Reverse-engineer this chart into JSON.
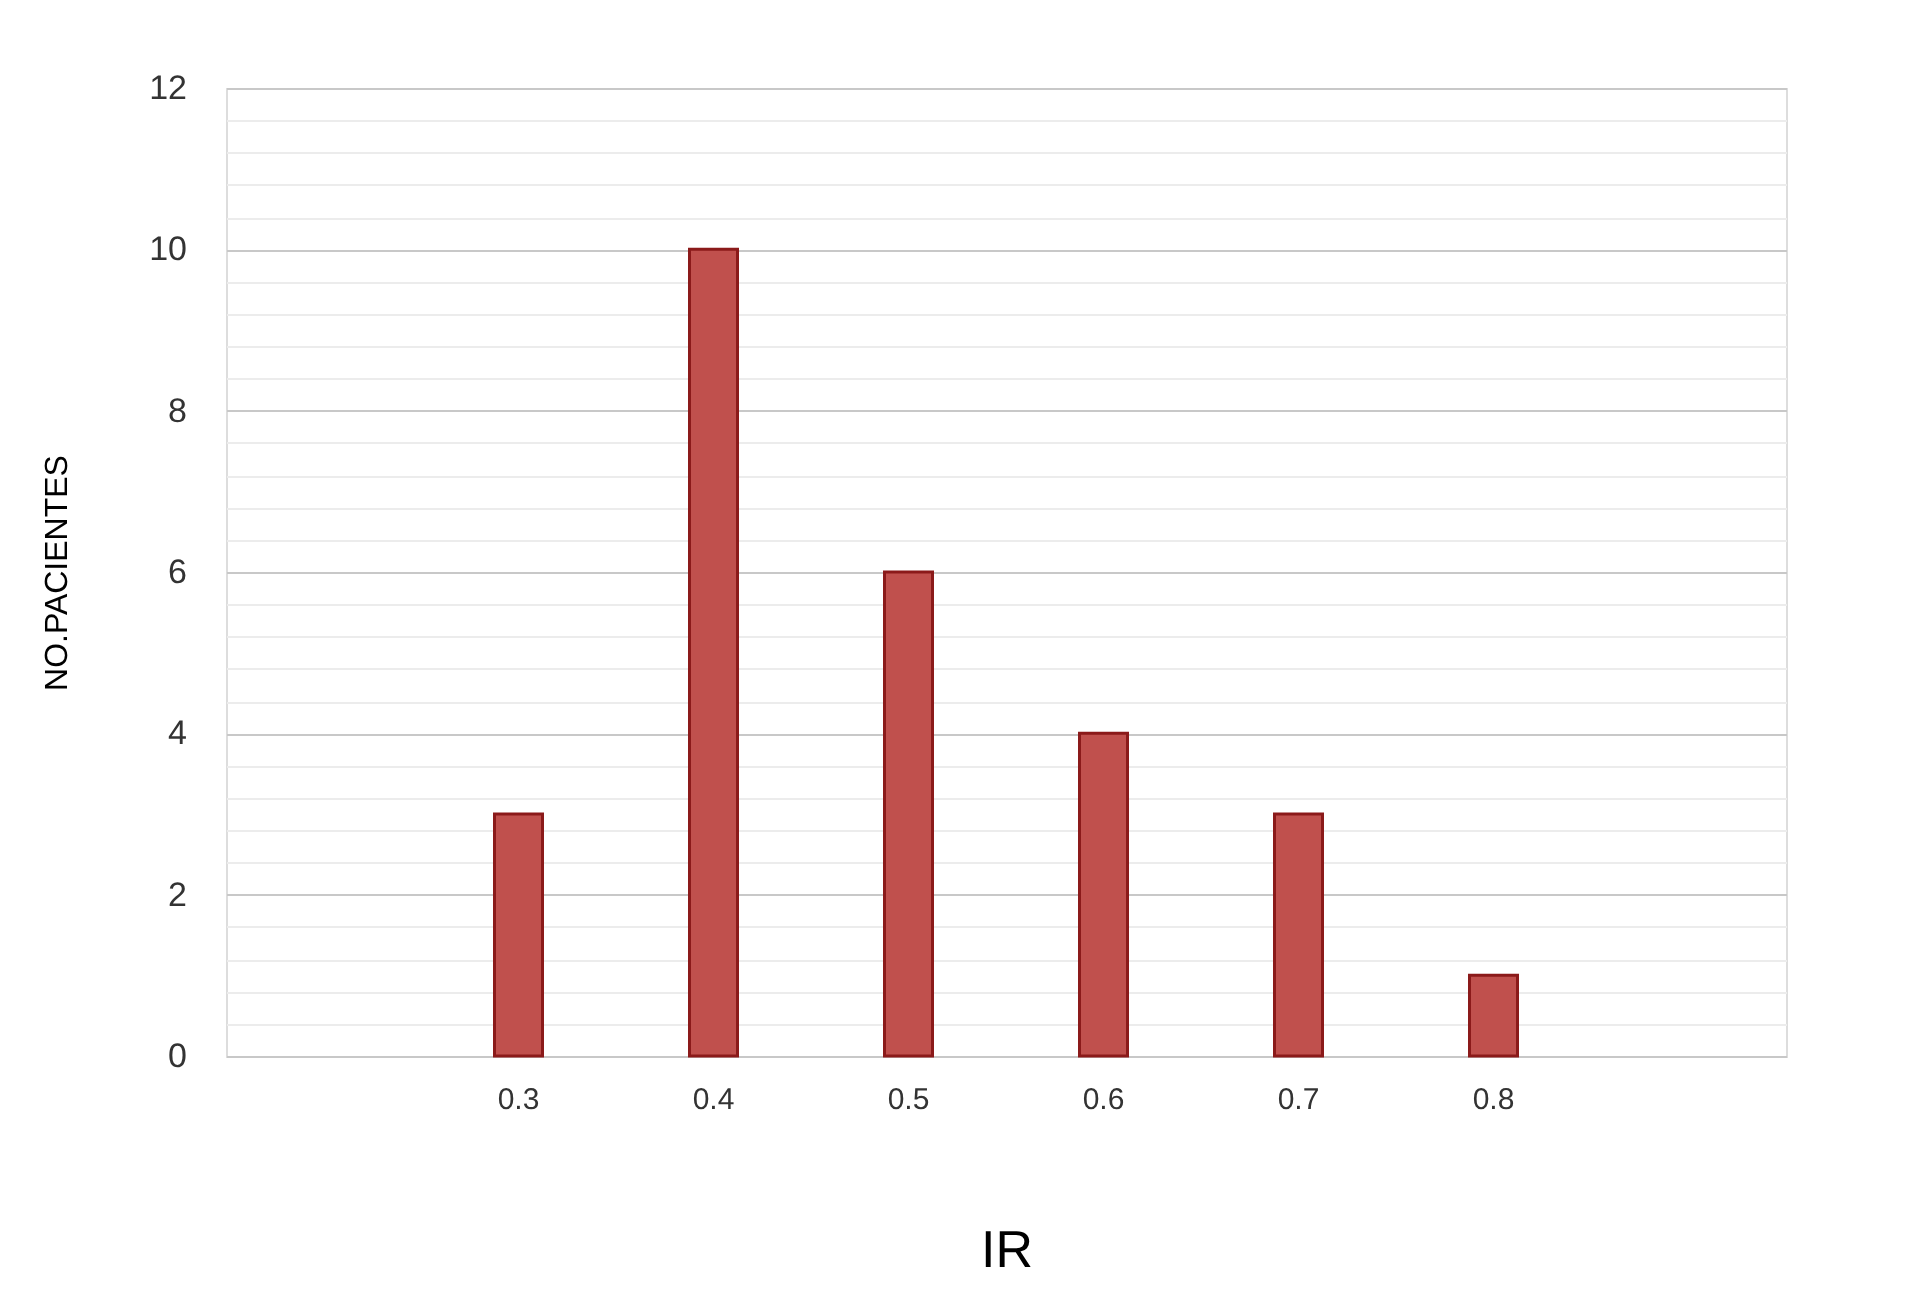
{
  "chart_data": {
    "type": "bar",
    "categories": [
      null,
      "0.3",
      "0.4",
      "0.5",
      "0.6",
      "0.7",
      "0.8",
      null
    ],
    "values": [
      null,
      3,
      10,
      6,
      4,
      3,
      1,
      null
    ],
    "color": "#c0504d",
    "xlabel": "IR",
    "ylabel": "NO.PACIENTES",
    "ylim": [
      0,
      12
    ],
    "yticks": [
      0,
      {
        "value": 0.4,
        "label": null
      },
      {
        "value": 0.8,
        "label": null
      },
      {
        "value": 1.2,
        "label": null
      },
      {
        "value": 1.6,
        "label": null
      },
      2,
      {
        "value": 2.4,
        "label": null
      },
      {
        "value": 2.8,
        "label": null
      },
      {
        "value": 3.2,
        "label": null
      },
      {
        "value": 3.6,
        "label": null
      },
      4,
      {
        "value": 4.4,
        "label": null
      },
      {
        "value": 4.8,
        "label": null
      },
      {
        "value": 5.2,
        "label": null
      },
      {
        "value": 5.6,
        "label": null
      },
      6,
      {
        "value": 6.4,
        "label": null
      },
      {
        "value": 6.8,
        "label": null
      },
      {
        "value": 7.2,
        "label": null
      },
      {
        "value": 7.6,
        "label": null
      },
      8,
      {
        "value": 8.4,
        "label": null
      },
      {
        "value": 8.8,
        "label": null
      },
      {
        "value": 9.2,
        "label": null
      },
      {
        "value": 9.6,
        "label": null
      },
      10,
      {
        "value": 10.4,
        "label": null
      },
      {
        "value": 10.8,
        "label": null
      },
      {
        "value": 11.2,
        "label": null
      },
      {
        "value": 11.6,
        "label": null
      },
      12
    ],
    "grid": "y"
  }
}
